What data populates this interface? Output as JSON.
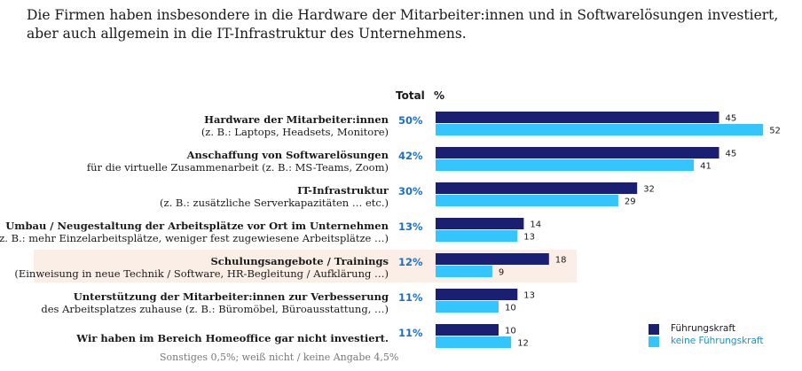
{
  "title": "Die Firmen haben insbesondere in die Hardware der Mitarbeiter:innen und in Softwarelösungen investiert, aber auch allgemein in die IT-Infrastruktur des Unternehmens.",
  "header": {
    "total_label": "Total",
    "pct_label": "%"
  },
  "colors": {
    "fuehrungskraft": "#1a1f71",
    "keine_fuehrungskraft": "#33c5fb",
    "highlight": "#fbeee6",
    "total_text": "#1f6fc1"
  },
  "footnote": "Sonstiges 0,5%; weiß nicht / keine Angabe 4,5%",
  "chart_data": {
    "type": "bar",
    "orientation": "horizontal",
    "title": "",
    "xlabel": "",
    "ylabel": "",
    "xlim": [
      0,
      55
    ],
    "legend_position": "bottom-right",
    "grid": false,
    "categories": [
      {
        "line1": "Hardware der Mitarbeiter:innen",
        "line2": "(z. B.: Laptops, Headsets, Monitore)",
        "total": "50%"
      },
      {
        "line1": "Anschaffung von Softwarelösungen",
        "line2": "für die virtuelle Zusammenarbeit (z. B.: MS-Teams, Zoom)",
        "total": "42%"
      },
      {
        "line1": "IT-Infrastruktur",
        "line2": "(z. B.: zusätzliche Serverkapazitäten … etc.)",
        "total": "30%"
      },
      {
        "line1": "Umbau / Neugestaltung der Arbeitsplätze vor Ort im Unternehmen",
        "line2": "(z. B.: mehr Einzelarbeitsplätze, weniger fest zugewiesene Arbeitsplätze …)",
        "total": "13%"
      },
      {
        "line1": "Schulungsangebote / Trainings",
        "line2": "(Einweisung in neue Technik / Software, HR-Begleitung / Aufklärung …)",
        "total": "12%",
        "highlight": true
      },
      {
        "line1": "Unterstützung der Mitarbeiter:innen zur Verbesserung",
        "line2": "des Arbeitsplatzes zuhause (z. B.: Büromöbel, Büroausstattung, …)",
        "total": "11%"
      },
      {
        "line1": "Wir haben im Bereich Homeoffice gar nicht investiert.",
        "line2": "",
        "total": "11%"
      }
    ],
    "series": [
      {
        "name": "Führungskraft",
        "color": "#1a1f71",
        "values": [
          45,
          45,
          32,
          14,
          18,
          13,
          10
        ]
      },
      {
        "name": "keine Führungskraft",
        "color": "#33c5fb",
        "values": [
          52,
          41,
          29,
          13,
          9,
          10,
          12
        ]
      }
    ]
  }
}
